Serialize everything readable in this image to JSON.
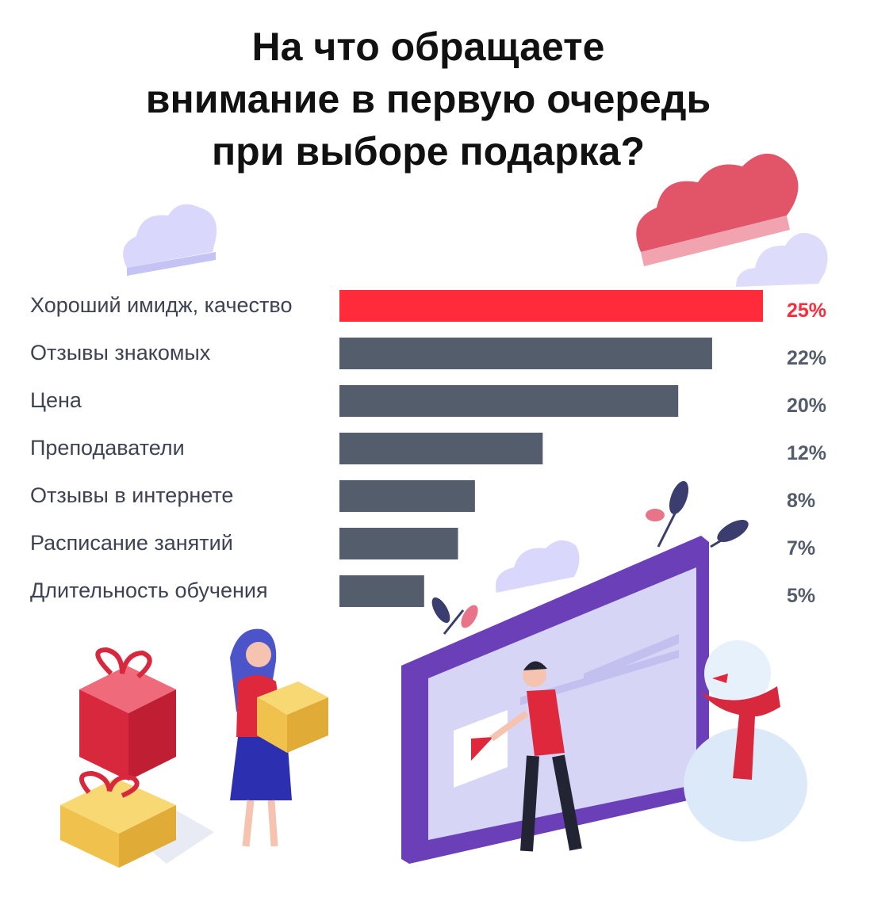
{
  "title_lines": [
    "На что обращаете",
    "внимание в первую очередь",
    "при выборе подарка?"
  ],
  "colors": {
    "highlight": "#ff2a3a",
    "bar": "#535d6b",
    "value_text": "#535d6b",
    "category_text": "#3d4352",
    "cloud_lilac": "#d9d7fb",
    "cloud_red": "#e25467",
    "screen_purple": "#6a3fb8"
  },
  "illustration_icons": [
    "cloud-icon",
    "gift-box-icon",
    "woman-with-gift-icon",
    "monitor-icon",
    "man-presenter-icon",
    "snowman-icon",
    "leaf-branch-icon"
  ],
  "chart_data": {
    "type": "bar",
    "orientation": "horizontal",
    "title": "На что обращаете внимание в первую очередь при выборе подарка?",
    "categories": [
      "Хороший имидж, качество",
      "Отзывы знакомых",
      "Цена",
      "Преподаватели",
      "Отзывы в интернете",
      "Расписание занятий",
      "Длительность обучения"
    ],
    "values": [
      25,
      22,
      20,
      12,
      8,
      7,
      5
    ],
    "value_labels": [
      "25%",
      "22%",
      "20%",
      "12%",
      "8%",
      "7%",
      "5%"
    ],
    "highlight_index": 0,
    "xlim": [
      0,
      25
    ],
    "grid": false,
    "legend": "none"
  }
}
